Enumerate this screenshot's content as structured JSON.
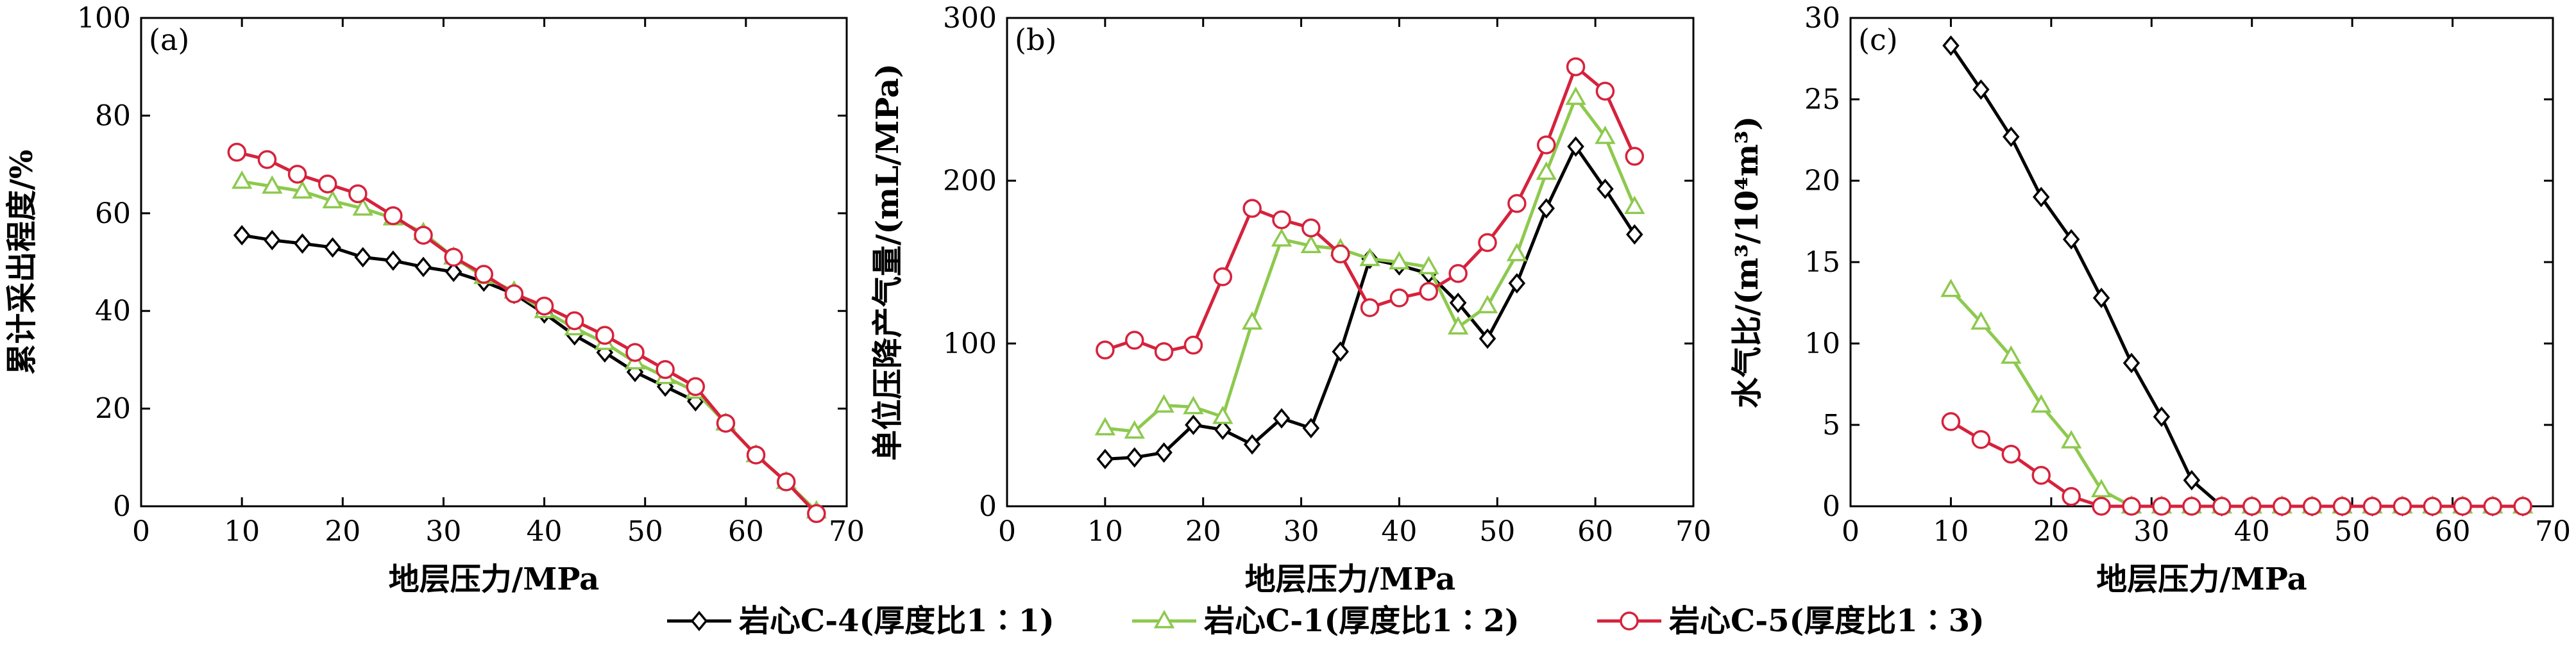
{
  "colors": {
    "C4": "#000000",
    "C1": "#8dc94e",
    "C5": "#d6223c"
  },
  "legend": [
    {
      "key": "C4",
      "label": "岩心C-4(厚度比1∶1)",
      "marker": "diamond"
    },
    {
      "key": "C1",
      "label": "岩心C-1(厚度比1∶2)",
      "marker": "triangle"
    },
    {
      "key": "C5",
      "label": "岩心C-5(厚度比1∶3)",
      "marker": "circle"
    }
  ],
  "chart_data": [
    {
      "panel": "(a)",
      "type": "line",
      "xlabel": "地层压力/MPa",
      "ylabel": "累计采出程度/%",
      "xlim": [
        0,
        70
      ],
      "ylim": [
        0,
        100
      ],
      "xticks": [
        "0",
        "10",
        "20",
        "30",
        "40",
        "50",
        "60",
        "70"
      ],
      "yticks": [
        "0",
        "20",
        "40",
        "60",
        "80",
        "100"
      ],
      "series": [
        {
          "key": "C4",
          "x": [
            10,
            13,
            16,
            19,
            22,
            25,
            28,
            31,
            34,
            37,
            40,
            43,
            46,
            49,
            52,
            55
          ],
          "y": [
            55.5,
            54.5,
            53.8,
            53,
            51,
            50.3,
            49,
            48,
            46,
            43.5,
            39.5,
            35,
            31.5,
            27.5,
            24.5,
            21.5
          ]
        },
        {
          "key": "C1",
          "x": [
            10,
            13,
            16,
            19,
            22,
            25,
            28,
            31,
            34,
            37,
            40,
            43,
            46,
            49,
            52,
            55,
            58,
            61,
            64,
            67
          ],
          "y": [
            66.5,
            65.5,
            64.5,
            62.5,
            61,
            59,
            56,
            51,
            47,
            44,
            40,
            36.5,
            33.5,
            29.5,
            26.5,
            23.5,
            17,
            10.5,
            5,
            -1
          ]
        },
        {
          "key": "C5",
          "x": [
            9.5,
            12.5,
            15.5,
            18.5,
            21.5,
            25,
            28,
            31,
            34,
            37,
            40,
            43,
            46,
            49,
            52,
            55,
            58,
            61,
            64,
            67
          ],
          "y": [
            72.5,
            71,
            68,
            66,
            64,
            59.5,
            55.5,
            51,
            47.5,
            43.5,
            41,
            38,
            35,
            31.5,
            28,
            24.5,
            17,
            10.5,
            5,
            -1.5
          ]
        }
      ]
    },
    {
      "panel": "(b)",
      "type": "line",
      "xlabel": "地层压力/MPa",
      "ylabel": "单位压降产气量/(mL/MPa)",
      "xlim": [
        0,
        70
      ],
      "ylim": [
        0,
        300
      ],
      "xticks": [
        "0",
        "10",
        "20",
        "30",
        "40",
        "50",
        "60",
        "70"
      ],
      "yticks": [
        "0",
        "100",
        "200",
        "300"
      ],
      "series": [
        {
          "key": "C4",
          "x": [
            10,
            13,
            16,
            19,
            22,
            25,
            28,
            31,
            34,
            37,
            40,
            43,
            46,
            49,
            52,
            55,
            58,
            61,
            64
          ],
          "y": [
            29,
            30,
            33,
            50,
            47,
            38,
            54,
            48,
            95,
            152,
            148,
            143,
            125,
            103,
            137,
            183,
            221,
            195,
            167
          ]
        },
        {
          "key": "C1",
          "x": [
            10,
            13,
            16,
            19,
            22,
            25,
            28,
            31,
            34,
            37,
            40,
            43,
            46,
            49,
            52,
            55,
            58,
            61,
            64
          ],
          "y": [
            48,
            46,
            62,
            61,
            55,
            113,
            164,
            160,
            158,
            152,
            150,
            147,
            110,
            123,
            155,
            205,
            251,
            227,
            184
          ]
        },
        {
          "key": "C5",
          "x": [
            10,
            13,
            16,
            19,
            22,
            25,
            28,
            31,
            34,
            37,
            40,
            43,
            46,
            49,
            52,
            55,
            58,
            61,
            64
          ],
          "y": [
            96,
            102,
            95,
            99,
            141,
            183,
            176,
            171,
            155,
            122,
            128,
            132,
            143,
            162,
            186,
            222,
            270,
            255,
            215
          ]
        }
      ]
    },
    {
      "panel": "(c)",
      "type": "line",
      "xlabel": "地层压力/MPa",
      "ylabel": "水气比/(m³/10⁴m³)",
      "xlim": [
        0,
        70
      ],
      "ylim": [
        0,
        30
      ],
      "xticks": [
        "0",
        "10",
        "20",
        "30",
        "40",
        "50",
        "60",
        "70"
      ],
      "yticks": [
        "0",
        "5",
        "10",
        "15",
        "20",
        "25",
        "30"
      ],
      "series": [
        {
          "key": "C4",
          "x": [
            10,
            13,
            16,
            19,
            22,
            25,
            28,
            31,
            34,
            37,
            40,
            43,
            46,
            49,
            52,
            55,
            58,
            61,
            64,
            67
          ],
          "y": [
            28.3,
            25.6,
            22.7,
            19,
            16.4,
            12.8,
            8.8,
            5.5,
            1.6,
            0,
            0,
            0,
            0,
            0,
            0,
            0,
            0,
            0,
            0,
            0
          ]
        },
        {
          "key": "C1",
          "x": [
            10,
            13,
            16,
            19,
            22,
            25,
            28,
            31,
            34,
            37,
            40,
            43,
            46,
            49,
            52,
            55,
            58,
            61,
            64,
            67
          ],
          "y": [
            13.3,
            11.3,
            9.2,
            6.2,
            4,
            1,
            0,
            0,
            0,
            0,
            0,
            0,
            0,
            0,
            0,
            0,
            0,
            0,
            0,
            0
          ]
        },
        {
          "key": "C5",
          "x": [
            10,
            13,
            16,
            19,
            22,
            25,
            28,
            31,
            34,
            37,
            40,
            43,
            46,
            49,
            52,
            55,
            58,
            61,
            64,
            67
          ],
          "y": [
            5.2,
            4.1,
            3.2,
            1.9,
            0.6,
            0,
            0,
            0,
            0,
            0,
            0,
            0,
            0,
            0,
            0,
            0,
            0,
            0,
            0,
            0
          ]
        }
      ]
    }
  ]
}
